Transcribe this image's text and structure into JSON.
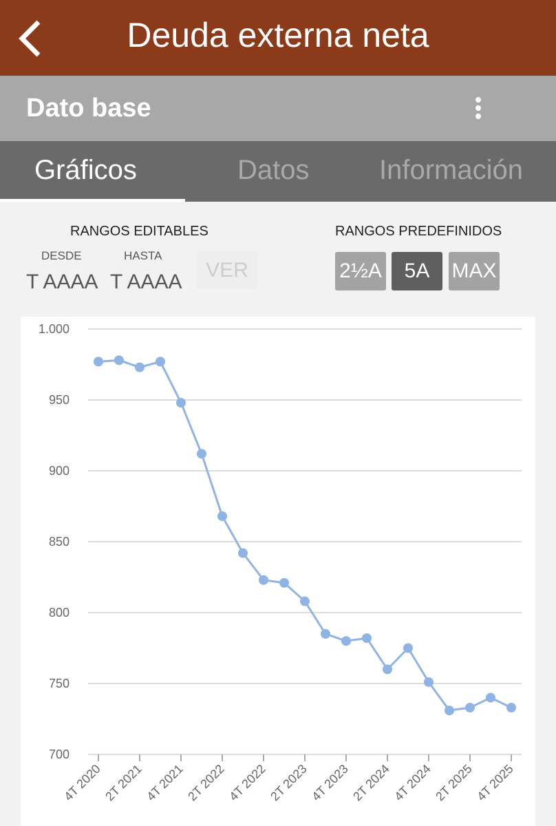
{
  "header": {
    "title": "Deuda externa neta"
  },
  "subheader": {
    "title": "Dato base"
  },
  "tabs": [
    "Gráficos",
    "Datos",
    "Información"
  ],
  "controls": {
    "editable": {
      "title": "RANGOS EDITABLES",
      "from_label": "DESDE",
      "from_value": "T AAAA",
      "to_label": "HASTA",
      "to_value": "T AAAA",
      "button": "VER"
    },
    "predefined": {
      "title": "RANGOS PREDEFINIDOS",
      "buttons": [
        "2½A",
        "5A",
        "MAX"
      ]
    }
  },
  "chart_data": {
    "type": "line",
    "color": "#8fb4e3",
    "grid": true,
    "categories": [
      "4T 2020",
      null,
      "2T 2021",
      null,
      "4T 2021",
      null,
      "2T 2022",
      null,
      "4T 2022",
      null,
      "2T 2023",
      null,
      "4T 2023",
      null,
      "2T 2024",
      null,
      "4T 2024",
      null,
      "2T 2025",
      null,
      "4T 2025"
    ],
    "values": [
      977,
      978,
      973,
      977,
      948,
      912,
      868,
      842,
      823,
      821,
      808,
      785,
      780,
      782,
      760,
      775,
      751,
      731,
      733,
      740,
      733
    ],
    "ylim": [
      700,
      1000
    ],
    "yticks": [
      700,
      750,
      800,
      850,
      900,
      950,
      {
        "value": 1000,
        "label": "1.000"
      }
    ]
  }
}
